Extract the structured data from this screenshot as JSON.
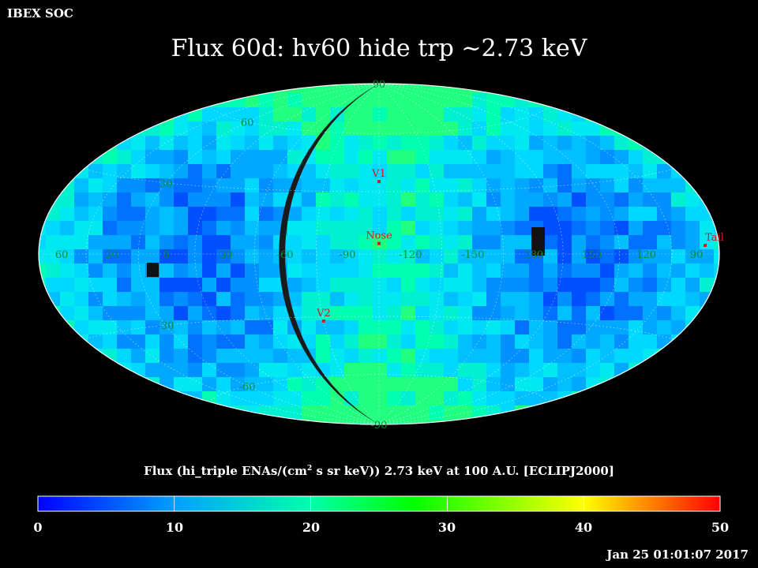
{
  "header": {
    "org": "IBEX SOC",
    "title": "Flux   60d: hv60 hide trp ~2.73 keV"
  },
  "map": {
    "projection": "aitoff-ellipse",
    "background": "#000000",
    "lon_labels": [
      {
        "text": "60",
        "lon": 60
      },
      {
        "text": "30",
        "lon": 30
      },
      {
        "text": "0",
        "lon": 0
      },
      {
        "text": "-30",
        "lon": -30
      },
      {
        "text": "-60",
        "lon": -60
      },
      {
        "text": "-90",
        "lon": -90
      },
      {
        "text": "-120",
        "lon": -120
      },
      {
        "text": "-150",
        "lon": -150
      },
      {
        "text": "180",
        "lon": 180
      },
      {
        "text": "150",
        "lon": 150
      },
      {
        "text": "120",
        "lon": 120
      },
      {
        "text": "90",
        "lon": 90
      }
    ],
    "lat_labels": [
      {
        "text": "90",
        "lat": 90
      },
      {
        "text": "60",
        "lat": 60
      },
      {
        "text": "30",
        "lat": 30
      },
      {
        "text": "-30",
        "lat": -30
      },
      {
        "text": "-60",
        "lat": -60
      },
      {
        "text": "-90",
        "lat": -90
      }
    ],
    "markers": [
      {
        "text": "V1",
        "lon": -105,
        "lat": 35
      },
      {
        "text": "Nose",
        "lon": -105,
        "lat": 5
      },
      {
        "text": "V2",
        "lon": -75,
        "lat": -32
      },
      {
        "text": "Tail",
        "lon": 75,
        "lat": 0
      }
    ],
    "label_color": "#0a8a3a",
    "marker_color": "#cc2020"
  },
  "colorbar": {
    "title_pre": "Flux (hi_triple ENAs/(cm",
    "title_sup": "2",
    "title_post": " s sr keV))  2.73 keV at 100 A.U. [ECLIPJ2000]",
    "ticks": [
      "0",
      "10",
      "20",
      "30",
      "40",
      "50"
    ],
    "min": 0,
    "max": 50,
    "colors": [
      "#0000ff",
      "#00ffff",
      "#00ff00",
      "#ffff00",
      "#ff0000"
    ]
  },
  "footer": {
    "timestamp": "Jan 25 01:01:07 2017"
  }
}
